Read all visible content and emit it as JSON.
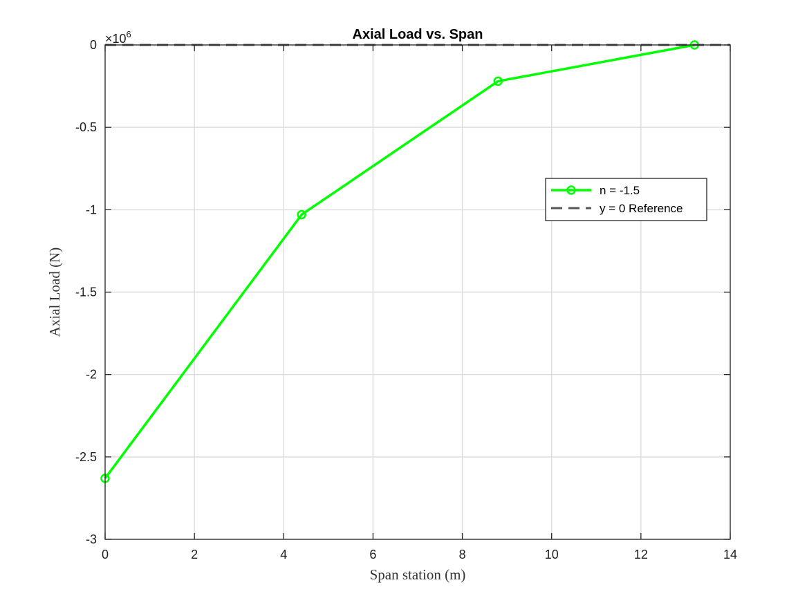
{
  "chart_data": {
    "type": "line",
    "title": "Axial Load vs. Span",
    "xlabel": "Span station (m)",
    "ylabel": "Axial Load (N)",
    "y_exponent_base": "×10",
    "y_exponent_power": "6",
    "xlim": [
      0,
      14
    ],
    "ylim": [
      -3,
      0
    ],
    "y_scale_factor": 1000000,
    "x_ticks": [
      0,
      2,
      4,
      6,
      8,
      10,
      12,
      14
    ],
    "x_tick_labels": [
      "0",
      "2",
      "4",
      "6",
      "8",
      "10",
      "12",
      "14"
    ],
    "y_ticks": [
      0,
      -0.5,
      -1,
      -1.5,
      -2,
      -2.5,
      -3
    ],
    "y_tick_labels": [
      "0",
      "-0.5",
      "-1",
      "-1.5",
      "-2",
      "-2.5",
      "-3"
    ],
    "grid": true,
    "legend_position": "right",
    "series": [
      {
        "name": "n = -1.5",
        "color": "#00ff00",
        "line_style": "solid",
        "marker": "circle",
        "x": [
          0,
          4.4,
          8.8,
          13.2
        ],
        "y": [
          -2.63,
          -1.03,
          -0.22,
          0
        ]
      },
      {
        "name": "y = 0 Reference",
        "color": "#555555",
        "line_style": "dashed",
        "marker": "none",
        "x": [
          0,
          14
        ],
        "y": [
          0,
          0
        ]
      }
    ]
  }
}
